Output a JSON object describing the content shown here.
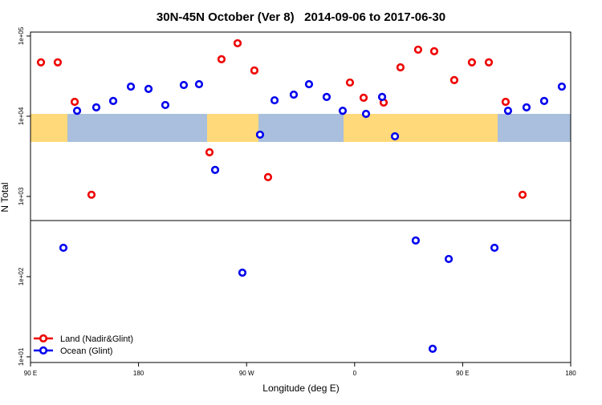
{
  "chart_data": {
    "type": "scatter",
    "title": "30N-45N October (Ver 8)   2014-09-06 to 2017-06-30",
    "xlabel": "Longitude (deg E)",
    "ylabel": "N Total",
    "xlim": [
      90,
      540
    ],
    "ylim": [
      8.5,
      112000
    ],
    "log_y": true,
    "xticks": [
      {
        "value": 90,
        "label": "90 E"
      },
      {
        "value": 180,
        "label": "180"
      },
      {
        "value": 270,
        "label": "90 W"
      },
      {
        "value": 360,
        "label": "0"
      },
      {
        "value": 450,
        "label": "90 E"
      },
      {
        "value": 540,
        "label": "180"
      }
    ],
    "yticks": [
      {
        "value": 10,
        "label": "1e+01"
      },
      {
        "value": 100,
        "label": "1e+02"
      },
      {
        "value": 1000,
        "label": "1e+03"
      },
      {
        "value": 10000,
        "label": "1e+04"
      },
      {
        "value": 100000,
        "label": "1e+05"
      }
    ],
    "legend": "lower left",
    "series": [
      {
        "name": "Land (Nadir&Glint)",
        "color": "#ee0000",
        "x": [
          98.7,
          112.7,
          126.8,
          140.8,
          239.1,
          249.1,
          262.5,
          276.5,
          287.9,
          356.1,
          367.5,
          384.2,
          398.2,
          412.9,
          426.3,
          443.0,
          457.7,
          471.8,
          485.8,
          499.9
        ],
        "values": [
          47000,
          47000,
          15100,
          1050,
          3550,
          51300,
          81300,
          37200,
          1740,
          26300,
          17000,
          14800,
          40700,
          67600,
          64600,
          28200,
          47000,
          47000,
          15100,
          1050
        ]
      },
      {
        "name": "Ocean (Glint)",
        "color": "#0000ee",
        "x": [
          117.4,
          128.8,
          144.8,
          158.9,
          173.6,
          188.3,
          202.3,
          217.7,
          230.4,
          243.8,
          266.5,
          281.2,
          293.3,
          309.3,
          322.0,
          336.7,
          350.1,
          369.5,
          382.9,
          393.6,
          410.9,
          425.0,
          438.4,
          476.5,
          487.8,
          503.2,
          517.9,
          532.6
        ],
        "values": [
          229,
          11700,
          12900,
          15500,
          23400,
          21900,
          13800,
          24500,
          25100,
          2140,
          112,
          5890,
          15800,
          18600,
          25100,
          17400,
          11700,
          10700,
          17400,
          5620,
          282,
          12.6,
          166,
          229,
          11700,
          12900,
          15500,
          23400
        ]
      }
    ]
  }
}
